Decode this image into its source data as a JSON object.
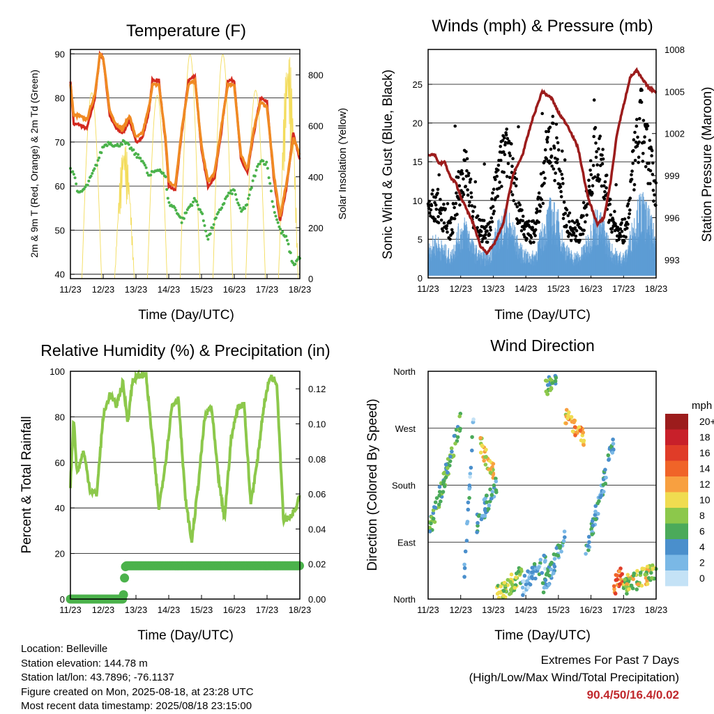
{
  "chart_data": [
    {
      "type": "line",
      "title": "Temperature (F)",
      "xlabel": "Time (Day/UTC)",
      "ylabel": "2m & 9m T (Red, Orange) & 2m Td (Green)",
      "ylabel_right": "Solar Insolation (Yellow)",
      "x_ticks": [
        "11/23",
        "12/23",
        "13/23",
        "14/23",
        "15/23",
        "16/23",
        "17/23",
        "18/23"
      ],
      "ylim": [
        39,
        91
      ],
      "y_ticks": [
        40,
        50,
        60,
        70,
        80,
        90
      ],
      "ylim_right": [
        0,
        900
      ],
      "y_ticks_right": [
        0,
        200,
        400,
        600,
        800
      ],
      "x": [
        0,
        0.1,
        0.25,
        0.5,
        0.75,
        0.9,
        1.0,
        1.2,
        1.4,
        1.6,
        1.8,
        2.0,
        2.2,
        2.4,
        2.5,
        2.7,
        2.9,
        3.0,
        3.2,
        3.4,
        3.6,
        3.8,
        4.0,
        4.2,
        4.4,
        4.6,
        4.8,
        5.0,
        5.2,
        5.4,
        5.6,
        5.8,
        6.0,
        6.2,
        6.4,
        6.6,
        6.8,
        7.0
      ],
      "series": [
        {
          "color": "#d42a20",
          "values": [
            84,
            74,
            74,
            73,
            80,
            90,
            89,
            76,
            73,
            72,
            75,
            70,
            71,
            77,
            84,
            84,
            70,
            60,
            59,
            72,
            84,
            85,
            68,
            60,
            62,
            72,
            84,
            84,
            66,
            63,
            72,
            80,
            79,
            62,
            52,
            60,
            72,
            66
          ]
        },
        {
          "color": "#f08a24",
          "values": [
            83,
            76,
            76,
            75,
            81,
            90,
            89,
            77,
            74,
            73,
            76,
            71,
            72,
            78,
            83,
            83,
            71,
            61,
            60,
            73,
            83,
            84,
            69,
            61,
            63,
            73,
            83,
            83,
            67,
            64,
            73,
            79,
            78,
            63,
            53,
            61,
            71,
            67
          ]
        },
        {
          "color": "#4bb24b",
          "values": [
            64,
            63,
            58,
            60,
            64,
            67,
            69,
            70,
            69,
            70,
            69,
            67,
            66,
            62,
            63,
            64,
            62,
            56,
            55,
            52,
            55,
            57,
            54,
            48,
            52,
            55,
            58,
            59,
            54,
            56,
            62,
            66,
            65,
            55,
            50,
            48,
            42,
            44
          ]
        }
      ],
      "insolation": {
        "color": "#f3dc5b",
        "days": [
          0,
          1,
          2,
          3,
          4,
          5,
          6
        ],
        "peak": [
          730,
          540,
          720,
          880,
          880,
          740,
          900
        ]
      }
    },
    {
      "type": "scatter",
      "title": "Winds (mph) & Pressure (mb)",
      "xlabel": "Time (Day/UTC)",
      "ylabel": "Sonic Wind & Gust (Blue, Black)",
      "ylabel_right": "Station Pressure (Maroon)",
      "x_ticks": [
        "11/23",
        "12/23",
        "13/23",
        "14/23",
        "15/23",
        "16/23",
        "17/23",
        "18/23"
      ],
      "ylim": [
        0,
        29.5
      ],
      "y_ticks": [
        0,
        5,
        10,
        15,
        20,
        25
      ],
      "ylim_right": [
        991.7,
        1008
      ],
      "y_ticks_right": [
        993,
        996,
        999,
        1002,
        1005,
        1008
      ],
      "pressure": {
        "color": "#9c1c1c",
        "x": [
          0,
          0.2,
          0.35,
          0.5,
          0.7,
          0.85,
          1.0,
          1.2,
          1.4,
          1.6,
          1.8,
          2.0,
          2.3,
          2.6,
          2.9,
          3.2,
          3.5,
          3.8,
          4.0,
          4.3,
          4.6,
          4.9,
          5.2,
          5.4,
          5.6,
          5.8,
          6.0,
          6.2,
          6.4,
          6.6,
          6.8,
          7.0
        ],
        "values": [
          1000.5,
          1000.5,
          999.8,
          1000.0,
          998.8,
          998.5,
          997.5,
          996.5,
          995.5,
          994.0,
          993.5,
          994.0,
          995.5,
          999.0,
          1000.5,
          1003.0,
          1005.0,
          1004.5,
          1003.5,
          1002.5,
          1001.0,
          997.5,
          995.5,
          996.0,
          998.5,
          1002.0,
          1004.0,
          1006.0,
          1006.5,
          1005.8,
          1005.2,
          1005.0
        ]
      },
      "wind_profile": [
        4,
        5,
        4,
        3,
        6,
        7,
        4,
        3,
        3,
        6,
        8,
        7,
        4,
        3,
        3,
        6,
        9,
        8,
        4,
        3,
        3,
        5,
        8,
        7,
        4,
        3,
        3,
        7,
        10,
        8,
        5
      ],
      "gust_color": "#000000",
      "wind_color": "#5b9bd5"
    },
    {
      "type": "line",
      "title": "Relative Humidity (%) & Precipitation (in)",
      "xlabel": "Time (Day/UTC)",
      "ylabel": "Percent & Total Rainfall",
      "x_ticks": [
        "11/23",
        "12/23",
        "13/23",
        "14/23",
        "15/23",
        "16/23",
        "17/23",
        "18/23"
      ],
      "ylim": [
        0,
        100
      ],
      "y_ticks": [
        0,
        20,
        40,
        60,
        80,
        100
      ],
      "ylim_right": [
        0,
        0.13
      ],
      "y_ticks_right": [
        "0.00",
        "0.02",
        "0.04",
        "0.06",
        "0.08",
        "0.10",
        "0.12"
      ],
      "series": [
        {
          "name": "Relative Humidity",
          "color": "#8cc84b",
          "x": [
            0,
            0.1,
            0.2,
            0.4,
            0.6,
            0.8,
            1.0,
            1.2,
            1.4,
            1.6,
            1.75,
            1.9,
            2.1,
            2.3,
            2.5,
            2.7,
            2.9,
            3.1,
            3.3,
            3.5,
            3.7,
            3.9,
            4.1,
            4.3,
            4.5,
            4.7,
            4.9,
            5.1,
            5.3,
            5.5,
            5.7,
            5.9,
            6.1,
            6.3,
            6.5,
            6.7,
            6.9,
            7.0
          ],
          "values": [
            50,
            80,
            55,
            65,
            48,
            46,
            80,
            90,
            85,
            95,
            78,
            96,
            98,
            99,
            70,
            40,
            60,
            85,
            88,
            45,
            25,
            50,
            80,
            85,
            55,
            35,
            70,
            84,
            86,
            42,
            60,
            85,
            98,
            95,
            35,
            36,
            40,
            45
          ]
        },
        {
          "name": "Total Precipitation",
          "color": "#4bb24b",
          "x": [
            0,
            1.0,
            1.6,
            1.62,
            1.64,
            1.66,
            1.7,
            2.5,
            3.5,
            4.5,
            5.5,
            6.5,
            7.0
          ],
          "values": [
            0.0,
            0.0,
            0.0,
            0.0025,
            0.006,
            0.018,
            0.019,
            0.019,
            0.019,
            0.019,
            0.019,
            0.019,
            0.019
          ]
        }
      ]
    },
    {
      "type": "scatter",
      "title": "Wind Direction",
      "xlabel": "Time (Day/UTC)",
      "ylabel": "Direction (Colored By Speed)",
      "x_ticks": [
        "11/23",
        "12/23",
        "13/23",
        "14/23",
        "15/23",
        "16/23",
        "17/23",
        "18/23"
      ],
      "y_ticks": [
        "North",
        "East",
        "South",
        "West",
        "North"
      ],
      "ylim": [
        0,
        360
      ],
      "colorbar": {
        "title": "mph",
        "labels": [
          "20+",
          "18",
          "16",
          "14",
          "12",
          "10",
          "8",
          "6",
          "4",
          "2",
          "0"
        ],
        "colors": [
          "#9c1c1c",
          "#c8202a",
          "#e03c28",
          "#f06428",
          "#f8a040",
          "#f0dc50",
          "#8cc84b",
          "#4baa5a",
          "#4a8fcc",
          "#7ab8e6",
          "#c4e2f6"
        ]
      },
      "clusters": [
        {
          "x0": 0.0,
          "x1": 1.0,
          "d0": 100,
          "d1": 280,
          "speed": 6
        },
        {
          "x0": 1.1,
          "x1": 1.4,
          "d0": 30,
          "d1": 290,
          "speed": 3
        },
        {
          "x0": 1.55,
          "x1": 2.0,
          "d0": 250,
          "d1": 200,
          "speed": 10
        },
        {
          "x0": 1.5,
          "x1": 2.1,
          "d0": 120,
          "d1": 180,
          "speed": 4
        },
        {
          "x0": 2.1,
          "x1": 2.9,
          "d0": 5,
          "d1": 40,
          "speed": 8
        },
        {
          "x0": 2.9,
          "x1": 3.6,
          "d0": 20,
          "d1": 60,
          "speed": 3
        },
        {
          "x0": 3.5,
          "x1": 4.2,
          "d0": 10,
          "d1": 100,
          "speed": 4
        },
        {
          "x0": 3.6,
          "x1": 4.0,
          "d0": 330,
          "d1": 360,
          "speed": 6
        },
        {
          "x0": 4.2,
          "x1": 4.8,
          "d0": 290,
          "d1": 250,
          "speed": 11
        },
        {
          "x0": 4.8,
          "x1": 5.7,
          "d0": 60,
          "d1": 250,
          "speed": 4
        },
        {
          "x0": 5.7,
          "x1": 6.0,
          "d0": 20,
          "d1": 40,
          "speed": 14
        },
        {
          "x0": 6.0,
          "x1": 7.0,
          "d0": 20,
          "d1": 45,
          "speed": 9
        }
      ]
    }
  ],
  "station_info": [
    "Location: Belleville",
    "Station elevation: 144.78 m",
    "Station lat/lon: 43.7896; -76.1137",
    "Figure created on Mon, 2025-08-18, at 23:28 UTC",
    "Most recent data timestamp: 2025/08/18 23:15:00"
  ],
  "extremes": {
    "title": "Extremes For Past 7 Days",
    "subtitle": "(High/Low/Max Wind/Total Precipitation)",
    "value": "90.4/50/16.4/0.02"
  }
}
